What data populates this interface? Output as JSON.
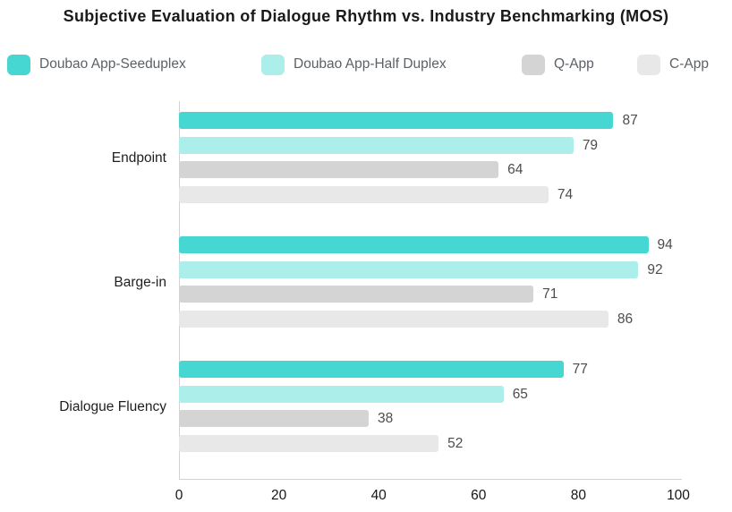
{
  "chart_data": {
    "type": "bar",
    "orientation": "horizontal",
    "title": "Subjective Evaluation of Dialogue Rhythm vs. Industry Benchmarking (MOS)",
    "categories": [
      "Endpoint",
      "Barge-in",
      "Dialogue Fluency"
    ],
    "series": [
      {
        "name": "Doubao App-Seeduplex",
        "color": "#46d7d2",
        "values": [
          87,
          94,
          77
        ]
      },
      {
        "name": "Doubao App-Half Duplex",
        "color": "#aceee9",
        "values": [
          79,
          92,
          65
        ]
      },
      {
        "name": "Q-App",
        "color": "#d4d4d4",
        "values": [
          64,
          71,
          38
        ]
      },
      {
        "name": "C-App",
        "color": "#e8e8e8",
        "values": [
          74,
          86,
          52
        ]
      }
    ],
    "xlabel": "",
    "ylabel": "",
    "xlim": [
      0,
      100
    ],
    "x_ticks": [
      0,
      20,
      40,
      60,
      80,
      100
    ],
    "grid": false,
    "legend_position": "top",
    "value_labels_shown": true,
    "colors": {
      "axis": "#d2d2d2",
      "title_text": "#1a1a1a",
      "legend_text": "#5c6166",
      "category_text": "#1f1f1f",
      "value_text": "#4d4d4d",
      "tick_text": "#161616",
      "background": "#ffffff"
    }
  }
}
